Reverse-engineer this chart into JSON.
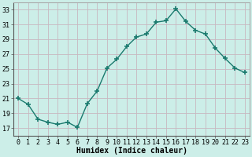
{
  "x": [
    0,
    1,
    2,
    3,
    4,
    5,
    6,
    7,
    8,
    9,
    10,
    11,
    12,
    13,
    14,
    15,
    16,
    17,
    18,
    19,
    20,
    21,
    22,
    23
  ],
  "y": [
    21,
    20.2,
    18.2,
    17.8,
    17.5,
    17.8,
    17.1,
    20.3,
    22.0,
    25.1,
    26.3,
    28.0,
    29.3,
    29.7,
    31.3,
    31.5,
    33.1,
    31.4,
    30.2,
    29.7,
    27.8,
    26.4,
    25.1,
    24.5
  ],
  "line_color": "#1a7a6e",
  "marker": "+",
  "marker_size": 4,
  "bg_color": "#cceee8",
  "grid_color": "#c8b8c0",
  "xlabel": "Humidex (Indice chaleur)",
  "ylim": [
    16,
    34
  ],
  "xlim": [
    -0.5,
    23.5
  ],
  "yticks": [
    17,
    19,
    21,
    23,
    25,
    27,
    29,
    31,
    33
  ],
  "xticks": [
    0,
    1,
    2,
    3,
    4,
    5,
    6,
    7,
    8,
    9,
    10,
    11,
    12,
    13,
    14,
    15,
    16,
    17,
    18,
    19,
    20,
    21,
    22,
    23
  ],
  "xlabel_fontsize": 7,
  "tick_fontsize": 6,
  "linewidth": 1.0
}
